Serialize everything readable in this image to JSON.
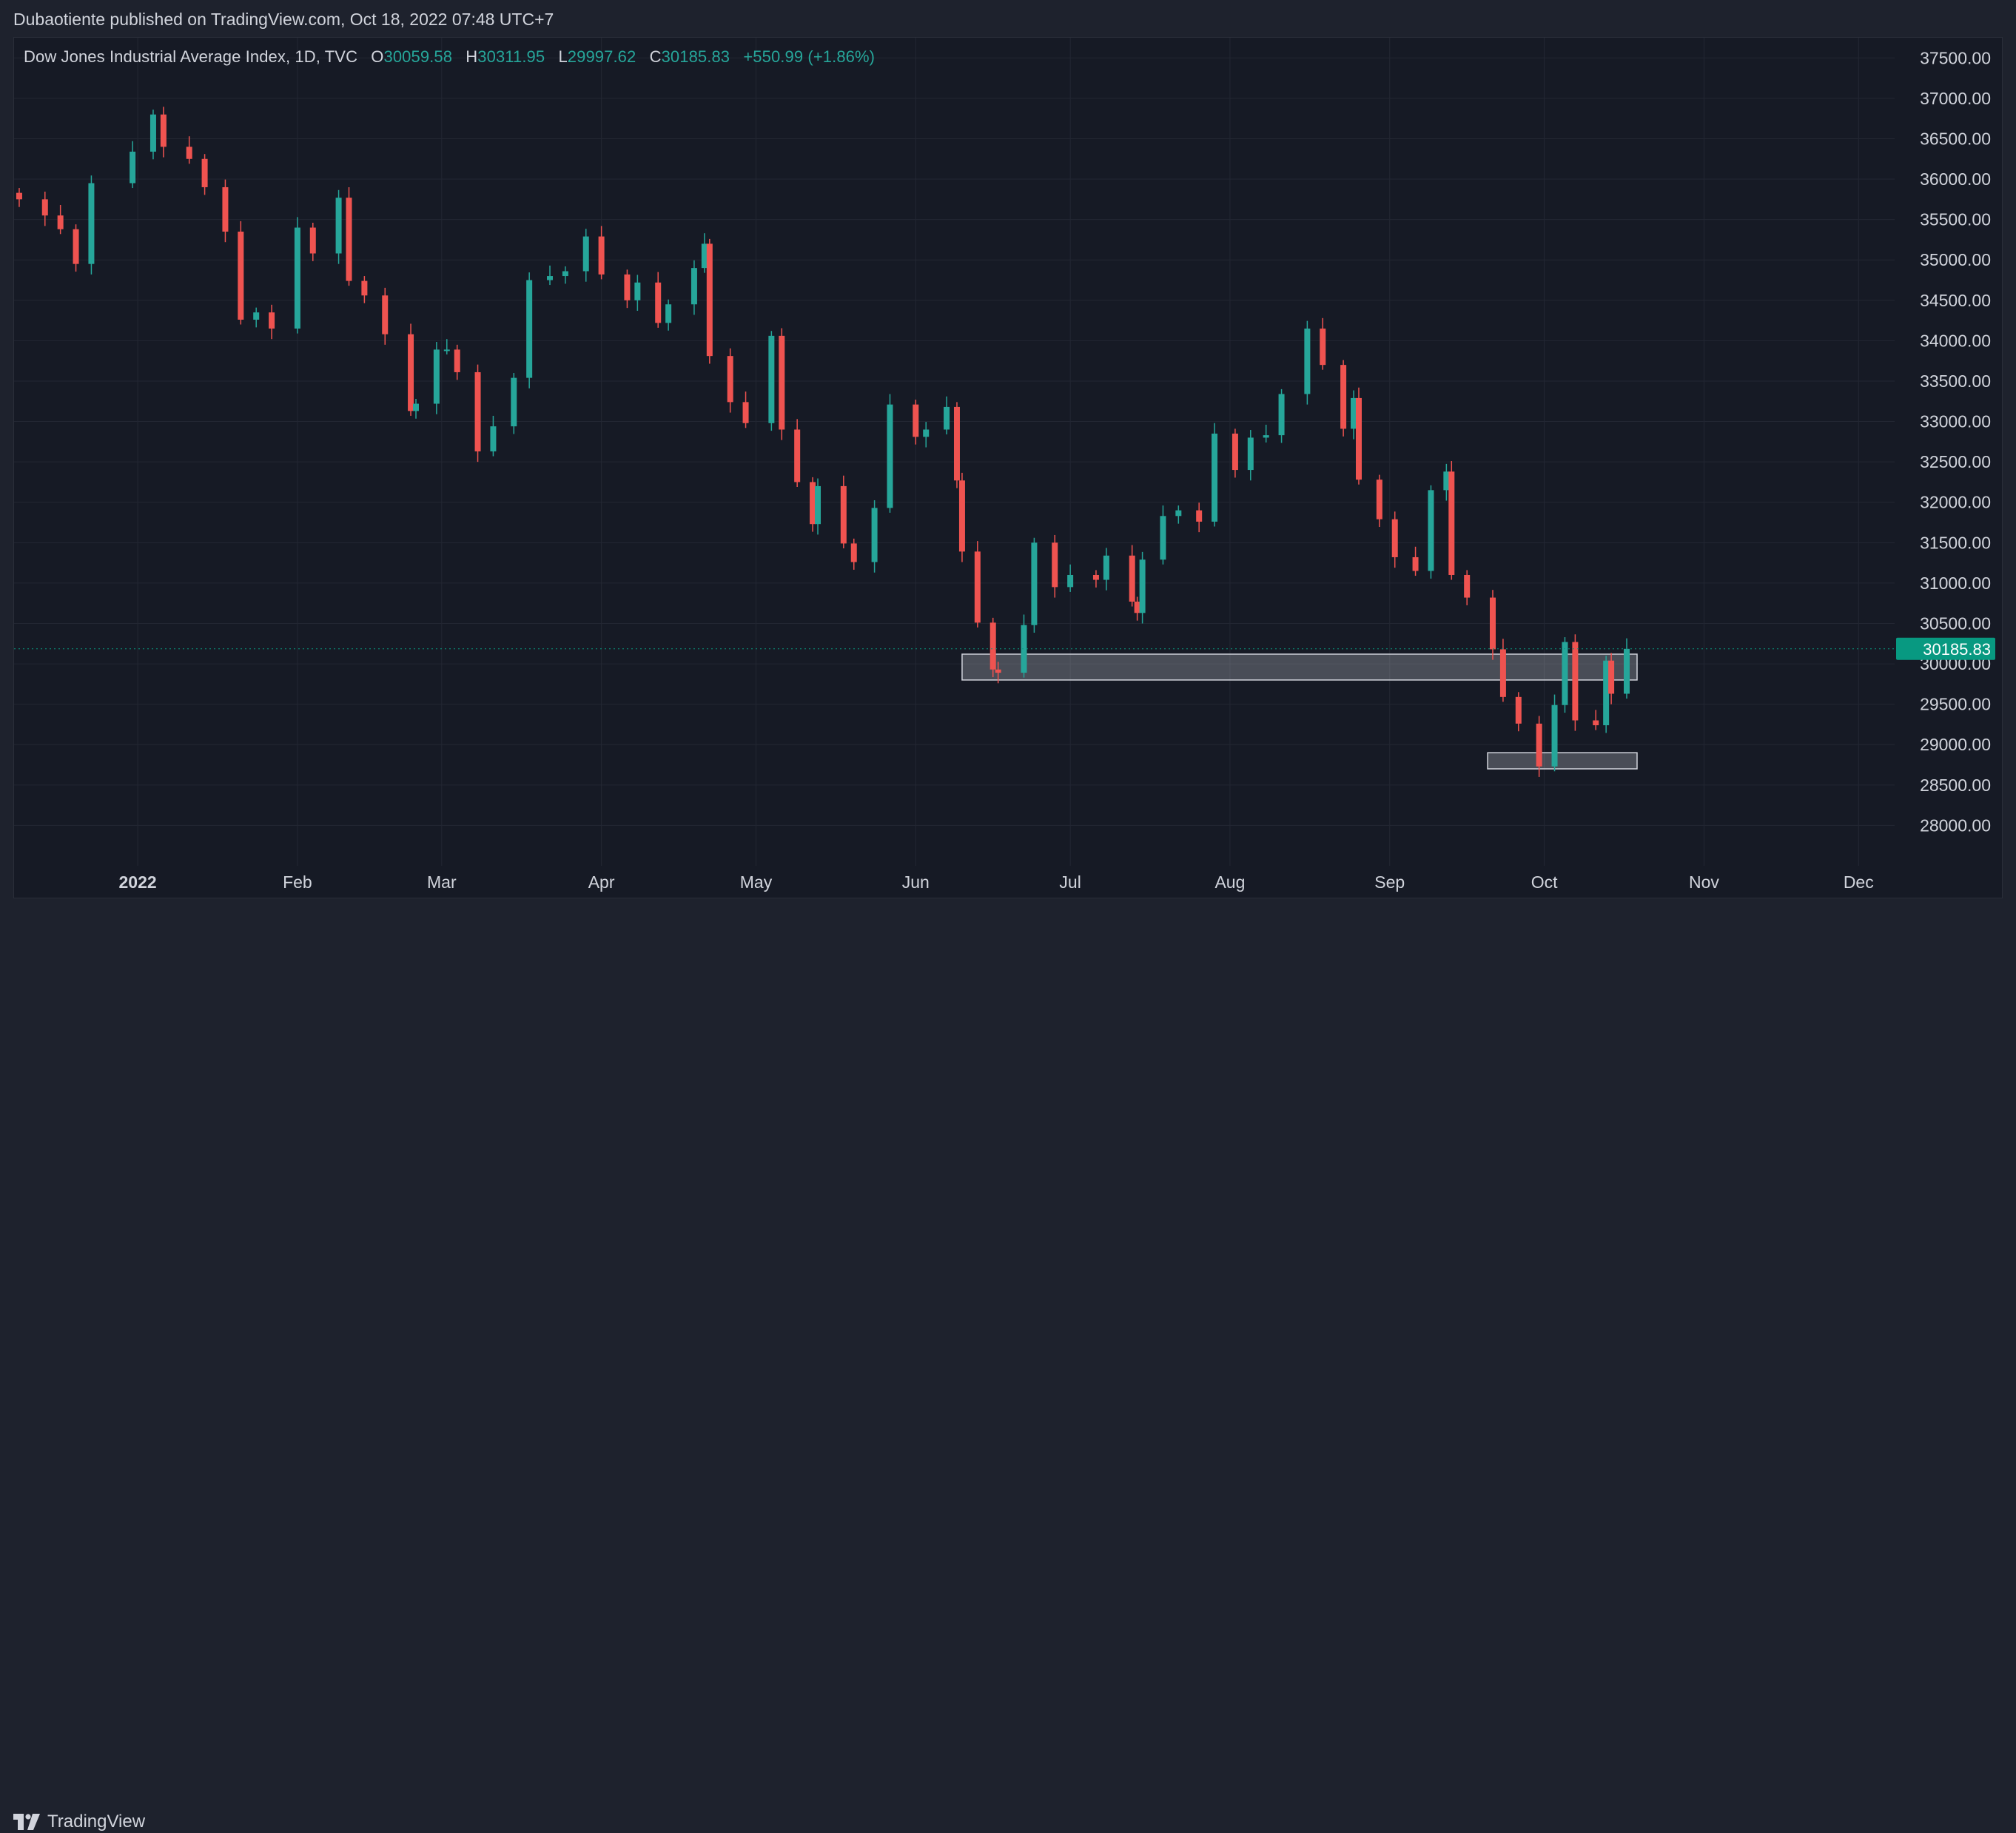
{
  "publish_text": "Dubaotiente published on TradingView.com, Oct 18, 2022 07:48 UTC+7",
  "legend": {
    "symbol": "Dow Jones Industrial Average Index, 1D, TVC",
    "o_label": "O",
    "o_value": "30059.58",
    "h_label": "H",
    "h_value": "30311.95",
    "l_label": "L",
    "l_value": "29997.62",
    "c_label": "C",
    "c_value": "30185.83",
    "change": "+550.99 (+1.86%)"
  },
  "footer": {
    "brand": "TradingView",
    "logo_icon": "tradingview-logo-icon"
  },
  "colors": {
    "up": "#26a69a",
    "down": "#ef5350",
    "background": "#161a25",
    "grid": "#232733",
    "text": "#d1d4dc",
    "price_tag": "#089981"
  },
  "chart_data": {
    "type": "candlestick",
    "title": "Dow Jones Industrial Average Index, 1D, TVC",
    "xlabel": "",
    "ylabel": "",
    "ylim": [
      27500,
      37750
    ],
    "y_ticks": [
      "37500.00",
      "37000.00",
      "36500.00",
      "36000.00",
      "35500.00",
      "35000.00",
      "34500.00",
      "34000.00",
      "33500.00",
      "33000.00",
      "32500.00",
      "32000.00",
      "31500.00",
      "31000.00",
      "30500.00",
      "30000.00",
      "29500.00",
      "29000.00",
      "28500.00",
      "28000.00"
    ],
    "x_range": [
      "2021-12-08",
      "2022-12-08"
    ],
    "x_ticks": [
      {
        "label": "2022",
        "date": "2022-01-01"
      },
      {
        "label": "Feb",
        "date": "2022-02-01"
      },
      {
        "label": "Mar",
        "date": "2022-03-01"
      },
      {
        "label": "Apr",
        "date": "2022-04-01"
      },
      {
        "label": "May",
        "date": "2022-05-01"
      },
      {
        "label": "Jun",
        "date": "2022-06-01"
      },
      {
        "label": "Jul",
        "date": "2022-07-01"
      },
      {
        "label": "Aug",
        "date": "2022-08-01"
      },
      {
        "label": "Sep",
        "date": "2022-09-01"
      },
      {
        "label": "Oct",
        "date": "2022-10-01"
      },
      {
        "label": "Nov",
        "date": "2022-11-01"
      },
      {
        "label": "Dec",
        "date": "2022-12-01"
      }
    ],
    "grid": true,
    "last_price": "30185.83",
    "zones": [
      {
        "from": "2022-06-10",
        "to": "2022-10-17",
        "low": 29800,
        "high": 30120
      },
      {
        "from": "2022-09-20",
        "to": "2022-10-17",
        "low": 28700,
        "high": 28900
      }
    ],
    "points": [
      {
        "date": "2021-12-09",
        "close": 35750
      },
      {
        "date": "2021-12-14",
        "close": 35550
      },
      {
        "date": "2021-12-17",
        "close": 35380
      },
      {
        "date": "2021-12-20",
        "close": 34950
      },
      {
        "date": "2021-12-23",
        "close": 35950
      },
      {
        "date": "2021-12-31",
        "close": 36340
      },
      {
        "date": "2022-01-04",
        "close": 36800
      },
      {
        "date": "2022-01-06",
        "close": 36400
      },
      {
        "date": "2022-01-11",
        "close": 36250
      },
      {
        "date": "2022-01-14",
        "close": 35900
      },
      {
        "date": "2022-01-18",
        "close": 35350
      },
      {
        "date": "2022-01-21",
        "close": 34260
      },
      {
        "date": "2022-01-24",
        "close": 34350
      },
      {
        "date": "2022-01-27",
        "close": 34150
      },
      {
        "date": "2022-02-01",
        "close": 35400
      },
      {
        "date": "2022-02-04",
        "close": 35080
      },
      {
        "date": "2022-02-09",
        "close": 35770
      },
      {
        "date": "2022-02-11",
        "close": 34740
      },
      {
        "date": "2022-02-14",
        "close": 34560
      },
      {
        "date": "2022-02-18",
        "close": 34080
      },
      {
        "date": "2022-02-23",
        "close": 33130
      },
      {
        "date": "2022-02-24",
        "close": 33220
      },
      {
        "date": "2022-02-28",
        "close": 33890
      },
      {
        "date": "2022-03-02",
        "close": 33890
      },
      {
        "date": "2022-03-04",
        "close": 33610
      },
      {
        "date": "2022-03-08",
        "close": 32630
      },
      {
        "date": "2022-03-11",
        "close": 32940
      },
      {
        "date": "2022-03-15",
        "close": 33540
      },
      {
        "date": "2022-03-18",
        "close": 34750
      },
      {
        "date": "2022-03-22",
        "close": 34800
      },
      {
        "date": "2022-03-25",
        "close": 34860
      },
      {
        "date": "2022-03-29",
        "close": 35290
      },
      {
        "date": "2022-04-01",
        "close": 34820
      },
      {
        "date": "2022-04-06",
        "close": 34500
      },
      {
        "date": "2022-04-08",
        "close": 34720
      },
      {
        "date": "2022-04-12",
        "close": 34220
      },
      {
        "date": "2022-04-14",
        "close": 34450
      },
      {
        "date": "2022-04-19",
        "close": 34900
      },
      {
        "date": "2022-04-21",
        "close": 35200
      },
      {
        "date": "2022-04-22",
        "close": 33810
      },
      {
        "date": "2022-04-26",
        "close": 33240
      },
      {
        "date": "2022-04-29",
        "close": 32980
      },
      {
        "date": "2022-05-04",
        "close": 34060
      },
      {
        "date": "2022-05-06",
        "close": 32900
      },
      {
        "date": "2022-05-09",
        "close": 32250
      },
      {
        "date": "2022-05-12",
        "close": 31730
      },
      {
        "date": "2022-05-13",
        "close": 32200
      },
      {
        "date": "2022-05-18",
        "close": 31490
      },
      {
        "date": "2022-05-20",
        "close": 31260
      },
      {
        "date": "2022-05-24",
        "close": 31930
      },
      {
        "date": "2022-05-27",
        "close": 33210
      },
      {
        "date": "2022-06-01",
        "close": 32810
      },
      {
        "date": "2022-06-03",
        "close": 32900
      },
      {
        "date": "2022-06-07",
        "close": 33180
      },
      {
        "date": "2022-06-09",
        "close": 32270
      },
      {
        "date": "2022-06-10",
        "close": 31390
      },
      {
        "date": "2022-06-13",
        "close": 30510
      },
      {
        "date": "2022-06-16",
        "close": 29930
      },
      {
        "date": "2022-06-17",
        "close": 29890
      },
      {
        "date": "2022-06-22",
        "close": 30480
      },
      {
        "date": "2022-06-24",
        "close": 31500
      },
      {
        "date": "2022-06-28",
        "close": 30950
      },
      {
        "date": "2022-07-01",
        "close": 31100
      },
      {
        "date": "2022-07-06",
        "close": 31040
      },
      {
        "date": "2022-07-08",
        "close": 31340
      },
      {
        "date": "2022-07-13",
        "close": 30770
      },
      {
        "date": "2022-07-14",
        "close": 30630
      },
      {
        "date": "2022-07-15",
        "close": 31290
      },
      {
        "date": "2022-07-19",
        "close": 31830
      },
      {
        "date": "2022-07-22",
        "close": 31900
      },
      {
        "date": "2022-07-26",
        "close": 31760
      },
      {
        "date": "2022-07-29",
        "close": 32850
      },
      {
        "date": "2022-08-02",
        "close": 32400
      },
      {
        "date": "2022-08-05",
        "close": 32800
      },
      {
        "date": "2022-08-08",
        "close": 32830
      },
      {
        "date": "2022-08-11",
        "close": 33340
      },
      {
        "date": "2022-08-16",
        "close": 34150
      },
      {
        "date": "2022-08-19",
        "close": 33700
      },
      {
        "date": "2022-08-23",
        "close": 32910
      },
      {
        "date": "2022-08-25",
        "close": 33290
      },
      {
        "date": "2022-08-26",
        "close": 32280
      },
      {
        "date": "2022-08-30",
        "close": 31790
      },
      {
        "date": "2022-09-02",
        "close": 31320
      },
      {
        "date": "2022-09-06",
        "close": 31150
      },
      {
        "date": "2022-09-09",
        "close": 32150
      },
      {
        "date": "2022-09-12",
        "close": 32380
      },
      {
        "date": "2022-09-13",
        "close": 31100
      },
      {
        "date": "2022-09-16",
        "close": 30820
      },
      {
        "date": "2022-09-21",
        "close": 30180
      },
      {
        "date": "2022-09-23",
        "close": 29590
      },
      {
        "date": "2022-09-26",
        "close": 29260
      },
      {
        "date": "2022-09-30",
        "close": 28730
      },
      {
        "date": "2022-10-03",
        "close": 29490
      },
      {
        "date": "2022-10-05",
        "close": 30270
      },
      {
        "date": "2022-10-07",
        "close": 29300
      },
      {
        "date": "2022-10-11",
        "close": 29240
      },
      {
        "date": "2022-10-13",
        "close": 30040
      },
      {
        "date": "2022-10-14",
        "close": 29630
      },
      {
        "date": "2022-10-17",
        "close": 30185.83
      }
    ]
  }
}
